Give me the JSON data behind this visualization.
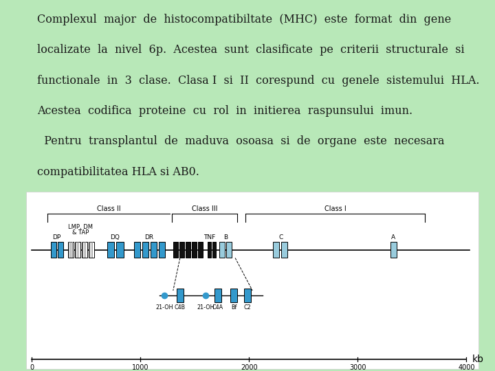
{
  "bg_color": "#b8e8b8",
  "text_lines": [
    "Complexul  major  de  histocompatibiltate  (MHC)  este  format  din  gene",
    "localizate  la  nivel  6p.  Acestea  sunt  clasificate  pe  criterii  structurale  si",
    "functionale  in  3  clase.  Clasa I  si  II  corespund  cu  genele  sistemului  HLA.",
    "Acestea  codifica  proteine  cu  rol  in  initierea  raspunsului  imun.",
    "  Pentru  transplantul  de  maduva  osoasa  si  de  organe  este  necesara",
    "compatibilitatea HLA si AB0."
  ],
  "text_color": "#1a1a1a",
  "text_fontsize": 11.5,
  "diagram_bg": "#f0ede0",
  "blue_dark": "#3399cc",
  "blue_light": "#99ccdd",
  "black_bar": "#111111",
  "stripe_bg": "#ffffff",
  "stripe_fg": "#999999"
}
